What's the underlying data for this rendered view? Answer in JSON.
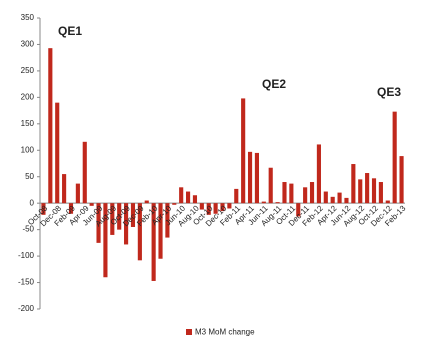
{
  "chart_data": {
    "type": "bar",
    "categories": [
      "Oct-08",
      null,
      "Dec-08",
      null,
      "Feb-09",
      null,
      "Apr-09",
      null,
      "Jun-09",
      null,
      "Aug-09",
      null,
      "Oct-09",
      null,
      "Dec-09",
      null,
      "Feb-10",
      null,
      "Apr-10",
      null,
      "Jun-10",
      null,
      "Aug-10",
      null,
      "Oct-10",
      null,
      "Dec-10",
      null,
      "Feb-11",
      null,
      "Apr-11",
      null,
      "Jun-11",
      null,
      "Aug-11",
      null,
      "Oct-11",
      null,
      "Dec-11",
      null,
      "Feb-12",
      null,
      "Apr-12",
      null,
      "Jun-12",
      null,
      "Aug-12",
      null,
      "Oct-12",
      null,
      "Dec-12",
      null,
      "Feb-13"
    ],
    "series": [
      {
        "name": "M3 MoM change",
        "color": "#c0281c",
        "values": [
          -22,
          293,
          190,
          55,
          -20,
          37,
          116,
          -5,
          -75,
          -140,
          -60,
          -50,
          -78,
          -45,
          -108,
          5,
          -147,
          -105,
          -65,
          -3,
          30,
          22,
          15,
          -12,
          -22,
          -20,
          -15,
          -10,
          27,
          198,
          97,
          95,
          3,
          67,
          2,
          40,
          37,
          -25,
          30,
          40,
          111,
          22,
          12,
          20,
          10,
          74,
          45,
          57,
          47,
          40,
          5,
          173,
          89
        ]
      }
    ],
    "ylim": [
      -200,
      350
    ],
    "yticks": [
      -200,
      -150,
      -100,
      -50,
      0,
      50,
      100,
      150,
      200,
      250,
      300,
      350
    ],
    "grid": false,
    "legend": "bottom",
    "annotations": [
      "QE1",
      "QE2",
      "QE3"
    ]
  }
}
